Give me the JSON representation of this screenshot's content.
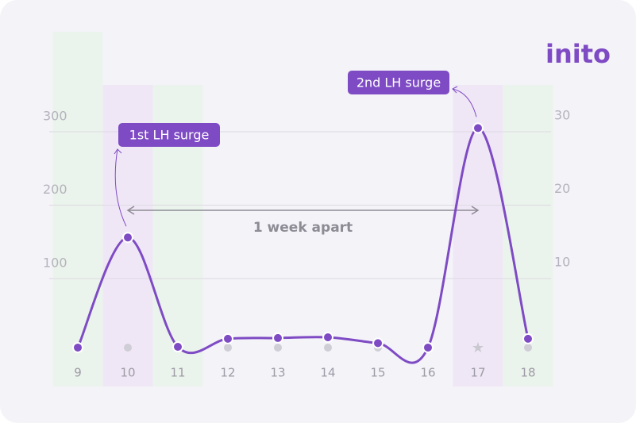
{
  "chart_data": {
    "type": "line",
    "brand": "inito",
    "categories": [
      "9",
      "10",
      "11",
      "12",
      "13",
      "14",
      "15",
      "16",
      "17",
      "18"
    ],
    "values": [
      6,
      156,
      7,
      18,
      19,
      20,
      12,
      6,
      305,
      18
    ],
    "color": "#7e4bc4",
    "band_colors": [
      "#e8f4e8",
      "#efe3f5",
      "#e8f4e8",
      null,
      null,
      null,
      null,
      null,
      "#efe3f5",
      "#e8f4e8"
    ],
    "ylim": [
      0,
      300
    ],
    "yticks": [
      100,
      200,
      300
    ],
    "y2lim": [
      0,
      30
    ],
    "y2ticks": [
      10,
      20,
      30
    ],
    "grid": true,
    "annotations": [
      {
        "text": "1st LH surge",
        "category": "10"
      },
      {
        "text": "2nd LH surge",
        "category": "17"
      }
    ],
    "span": {
      "text": "1 week apart",
      "from": "10",
      "to": "17"
    }
  }
}
